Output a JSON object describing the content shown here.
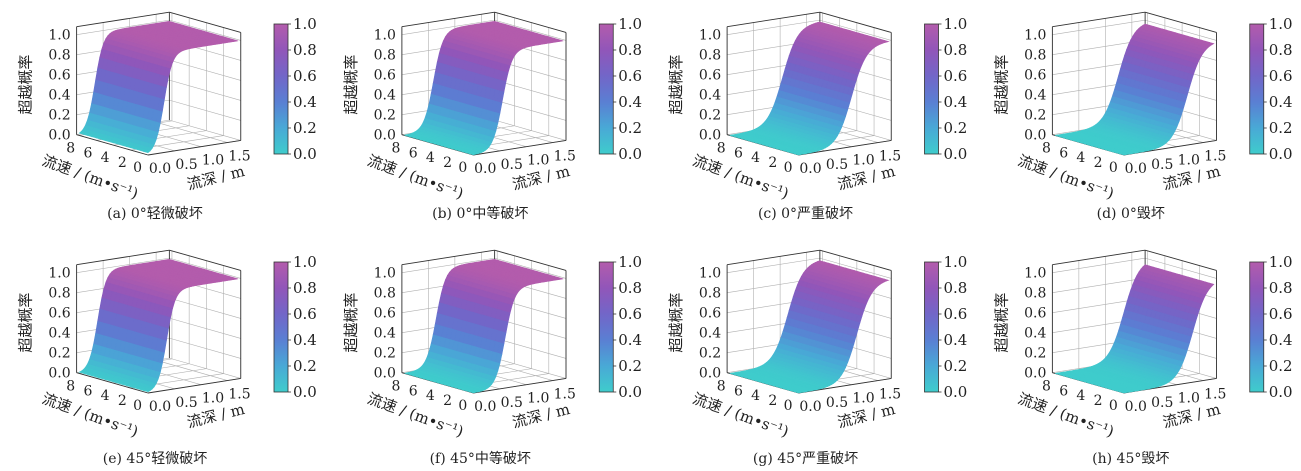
{
  "figure": {
    "colorbar_colors": [
      "#3fcccc",
      "#49a9d6",
      "#5a7fd3",
      "#7266c8",
      "#9156b9",
      "#b35cac"
    ],
    "axis_frame_color": "#333333",
    "grid_color": "#b0b0b0"
  },
  "chart_data": [
    {
      "type": "surface3d",
      "caption": "(a) 0°轻微破坏",
      "zlabel": "超越概率",
      "xlabel": "流速 / (m•s⁻¹)",
      "ylabel": "流深 / m",
      "x_ticks": [
        "8",
        "6",
        "4",
        "2",
        "0"
      ],
      "y_ticks": [
        "0.0",
        "0.5",
        "1.0",
        "1.5"
      ],
      "z_ticks": [
        "0.0",
        "0.2",
        "0.4",
        "0.6",
        "0.8",
        "1.0"
      ],
      "colorbar_ticks": [
        "0.0",
        "0.2",
        "0.4",
        "0.6",
        "0.8",
        "1.0"
      ],
      "xlim": [
        0,
        8
      ],
      "ylim": [
        0,
        1.7
      ],
      "zlim": [
        0,
        1
      ],
      "depth_threshold": 0.3,
      "transition_width": 0.08,
      "velocity_slope": 0.0
    },
    {
      "type": "surface3d",
      "caption": "(b) 0°中等破坏",
      "zlabel": "超越概率",
      "xlabel": "流速 / (m•s⁻¹)",
      "ylabel": "流深 / m",
      "x_ticks": [
        "8",
        "6",
        "4",
        "2",
        "0"
      ],
      "y_ticks": [
        "0.0",
        "0.5",
        "1.0",
        "1.5"
      ],
      "z_ticks": [
        "0.0",
        "0.2",
        "0.4",
        "0.6",
        "0.8",
        "1.0"
      ],
      "colorbar_ticks": [
        "0.0",
        "0.2",
        "0.4",
        "0.6",
        "0.8",
        "1.0"
      ],
      "xlim": [
        0,
        8
      ],
      "ylim": [
        0,
        1.7
      ],
      "zlim": [
        0,
        1
      ],
      "depth_threshold": 0.55,
      "transition_width": 0.09,
      "velocity_slope": 0.0
    },
    {
      "type": "surface3d",
      "caption": "(c) 0°严重破坏",
      "zlabel": "超越概率",
      "xlabel": "流速 / (m•s⁻¹)",
      "ylabel": "流深 / m",
      "x_ticks": [
        "8",
        "6",
        "4",
        "2",
        "0"
      ],
      "y_ticks": [
        "0.0",
        "0.5",
        "1.0",
        "1.5"
      ],
      "z_ticks": [
        "0.0",
        "0.2",
        "0.4",
        "0.6",
        "0.8",
        "1.0"
      ],
      "colorbar_ticks": [
        "0.0",
        "0.2",
        "0.4",
        "0.6",
        "0.8",
        "1.0"
      ],
      "xlim": [
        0,
        8
      ],
      "ylim": [
        0,
        1.7
      ],
      "zlim": [
        0,
        1
      ],
      "depth_threshold": 1.0,
      "transition_width": 0.14,
      "velocity_slope": 0.0
    },
    {
      "type": "surface3d",
      "caption": "(d) 0°毁坏",
      "zlabel": "超越概率",
      "xlabel": "流速 / (m•s⁻¹)",
      "ylabel": "流深 / m",
      "x_ticks": [
        "8",
        "6",
        "4",
        "2",
        "0"
      ],
      "y_ticks": [
        "0.0",
        "0.5",
        "1.0",
        "1.5"
      ],
      "z_ticks": [
        "0.0",
        "0.2",
        "0.4",
        "0.6",
        "0.8",
        "1.0"
      ],
      "colorbar_ticks": [
        "0.0",
        "0.2",
        "0.4",
        "0.6",
        "0.8",
        "1.0"
      ],
      "xlim": [
        0,
        8
      ],
      "ylim": [
        0,
        1.7
      ],
      "zlim": [
        0,
        1
      ],
      "depth_threshold": 1.2,
      "transition_width": 0.14,
      "velocity_slope": 0.0
    },
    {
      "type": "surface3d",
      "caption": "(e) 45°轻微破坏",
      "zlabel": "超越概率",
      "xlabel": "流速 / (m•s⁻¹)",
      "ylabel": "流深 / m",
      "x_ticks": [
        "8",
        "6",
        "4",
        "2",
        "0"
      ],
      "y_ticks": [
        "0.0",
        "0.5",
        "1.0",
        "1.5"
      ],
      "z_ticks": [
        "0.0",
        "0.2",
        "0.4",
        "0.6",
        "0.8",
        "1.0"
      ],
      "colorbar_ticks": [
        "0.0",
        "0.2",
        "0.4",
        "0.6",
        "0.8",
        "1.0"
      ],
      "xlim": [
        0,
        8
      ],
      "ylim": [
        0,
        1.7
      ],
      "zlim": [
        0,
        1
      ],
      "depth_threshold": 0.35,
      "transition_width": 0.08,
      "velocity_slope": 0.0
    },
    {
      "type": "surface3d",
      "caption": "(f) 45°中等破坏",
      "zlabel": "超越概率",
      "xlabel": "流速 / (m•s⁻¹)",
      "ylabel": "流深 / m",
      "x_ticks": [
        "8",
        "6",
        "4",
        "2",
        "0"
      ],
      "y_ticks": [
        "0.0",
        "0.5",
        "1.0",
        "1.5"
      ],
      "z_ticks": [
        "0.0",
        "0.2",
        "0.4",
        "0.6",
        "0.8",
        "1.0"
      ],
      "colorbar_ticks": [
        "0.0",
        "0.2",
        "0.4",
        "0.6",
        "0.8",
        "1.0"
      ],
      "xlim": [
        0,
        8
      ],
      "ylim": [
        0,
        1.7
      ],
      "zlim": [
        0,
        1
      ],
      "depth_threshold": 0.6,
      "transition_width": 0.09,
      "velocity_slope": 0.0
    },
    {
      "type": "surface3d",
      "caption": "(g) 45°严重破坏",
      "zlabel": "超越概率",
      "xlabel": "流速 / (m•s⁻¹)",
      "ylabel": "流深 / m",
      "x_ticks": [
        "8",
        "6",
        "4",
        "2",
        "0"
      ],
      "y_ticks": [
        "0.0",
        "0.5",
        "1.0",
        "1.5"
      ],
      "z_ticks": [
        "0.0",
        "0.2",
        "0.4",
        "0.6",
        "0.8",
        "1.0"
      ],
      "colorbar_ticks": [
        "0.0",
        "0.2",
        "0.4",
        "0.6",
        "0.8",
        "1.0"
      ],
      "xlim": [
        0,
        8
      ],
      "ylim": [
        0,
        1.7
      ],
      "zlim": [
        0,
        1
      ],
      "depth_threshold": 1.1,
      "transition_width": 0.14,
      "velocity_slope": 0.0
    },
    {
      "type": "surface3d",
      "caption": "(h) 45°毁坏",
      "zlabel": "超越概率",
      "xlabel": "流速 / (m•s⁻¹)",
      "ylabel": "流深 / m",
      "x_ticks": [
        "8",
        "6",
        "4",
        "2",
        "0"
      ],
      "y_ticks": [
        "0.0",
        "0.5",
        "1.0",
        "1.5"
      ],
      "z_ticks": [
        "0.0",
        "0.2",
        "0.4",
        "0.6",
        "0.8",
        "1.0"
      ],
      "colorbar_ticks": [
        "0.0",
        "0.2",
        "0.4",
        "0.6",
        "0.8",
        "1.0"
      ],
      "xlim": [
        0,
        8
      ],
      "ylim": [
        0,
        1.7
      ],
      "zlim": [
        0,
        1
      ],
      "depth_threshold": 1.3,
      "transition_width": 0.14,
      "velocity_slope": 0.0
    }
  ]
}
